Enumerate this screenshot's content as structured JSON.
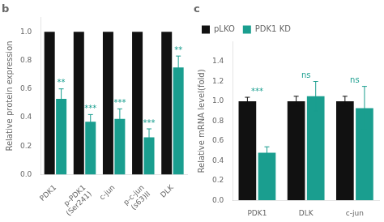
{
  "chart_data": [
    {
      "type": "bar",
      "title": "b",
      "categories": [
        "PDK1",
        "p-PDK1\n(Ser241)",
        "c-jun",
        "p-c-jun\n(s63)II",
        "DLK"
      ],
      "series": [
        {
          "color": "#111111",
          "values": [
            1.0,
            1.0,
            1.0,
            1.0,
            1.0
          ]
        },
        {
          "color": "#1a9e8f",
          "values": [
            0.53,
            0.37,
            0.39,
            0.26,
            0.75
          ],
          "errors": [
            0.07,
            0.05,
            0.07,
            0.06,
            0.08
          ]
        }
      ],
      "annotations": [
        "**",
        "***",
        "***",
        "***",
        "**"
      ],
      "ylabel": "Relative protein expression",
      "ylim": [
        0,
        1.1
      ],
      "yticks": [
        {
          "value": 0.0,
          "label": "0.0"
        },
        {
          "value": 0.2,
          "label": "0.2"
        },
        {
          "value": 0.4,
          "label": "0.4"
        },
        {
          "value": 0.6,
          "label": "0.6"
        },
        {
          "value": 0.8,
          "label": "0.8"
        },
        {
          "value": 1.0,
          "label": "1.0"
        }
      ],
      "grid": false
    },
    {
      "type": "bar",
      "title": "c",
      "categories": [
        "PDK1",
        "DLK",
        "c-jun"
      ],
      "series": [
        {
          "name": "pLKO",
          "color": "#111111",
          "values": [
            1.0,
            1.0,
            1.0
          ],
          "errors": [
            0.04,
            0.05,
            0.05
          ]
        },
        {
          "name": "PDK1 KD",
          "color": "#1a9e8f",
          "values": [
            0.48,
            1.05,
            0.93
          ],
          "errors": [
            0.06,
            0.15,
            0.22
          ]
        }
      ],
      "annotations": [
        "***",
        "ns",
        "ns"
      ],
      "ylabel": "Relative mRNA level(fold)",
      "ylim": [
        0,
        1.6
      ],
      "yticks": [
        {
          "value": 0.0,
          "label": "0.0"
        },
        {
          "value": 0.2,
          "label": "0.2"
        },
        {
          "value": 0.4,
          "label": "0.4"
        },
        {
          "value": 0.6,
          "label": "0.6"
        },
        {
          "value": 0.8,
          "label": "0.8"
        },
        {
          "value": 1.0,
          "label": "1.0"
        },
        {
          "value": 1.2,
          "label": "1.2"
        },
        {
          "value": 1.4,
          "label": "1.4"
        }
      ],
      "grid": false,
      "legend": "upper left"
    }
  ]
}
